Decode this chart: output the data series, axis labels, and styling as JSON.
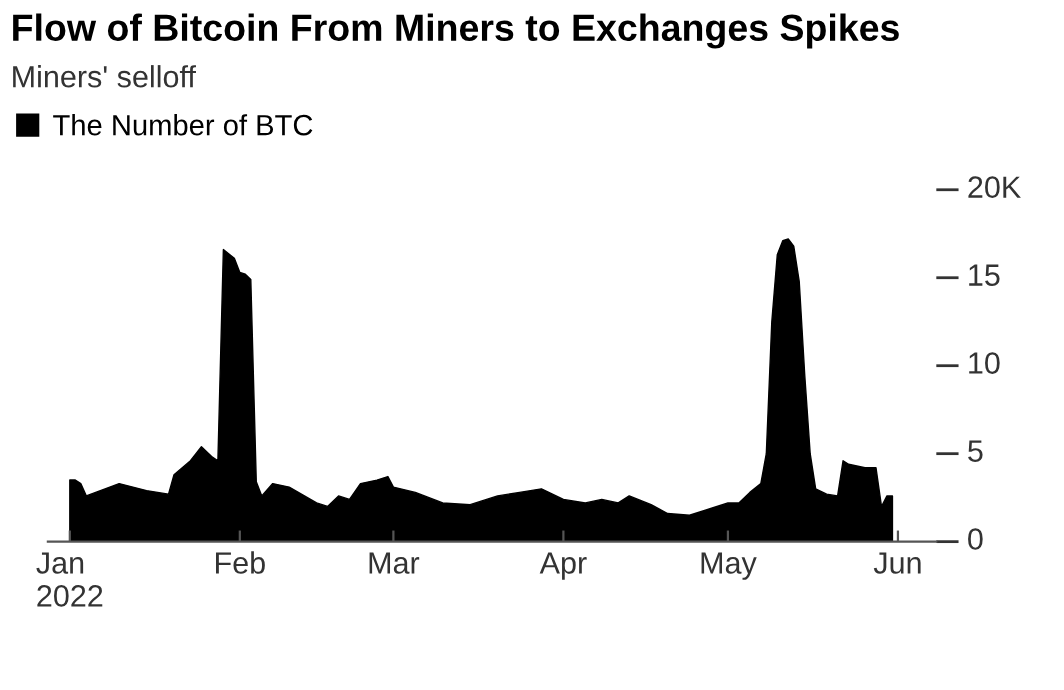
{
  "chart_data": {
    "type": "area",
    "title": "Flow of Bitcoin From Miners to Exchanges Spikes",
    "subtitle": "Miners' selloff",
    "x": [
      "2022-01-01",
      "2022-01-02",
      "2022-01-03",
      "2022-01-04",
      "2022-01-10",
      "2022-01-15",
      "2022-01-19",
      "2022-01-20",
      "2022-01-23",
      "2022-01-25",
      "2022-01-27",
      "2022-01-28",
      "2022-01-29",
      "2022-01-31",
      "2022-02-01",
      "2022-02-02",
      "2022-02-03",
      "2022-02-04",
      "2022-02-05",
      "2022-02-07",
      "2022-02-10",
      "2022-02-15",
      "2022-02-17",
      "2022-02-19",
      "2022-02-21",
      "2022-02-23",
      "2022-02-26",
      "2022-02-28",
      "2022-03-01",
      "2022-03-05",
      "2022-03-10",
      "2022-03-15",
      "2022-03-20",
      "2022-03-24",
      "2022-03-28",
      "2022-04-01",
      "2022-04-05",
      "2022-04-08",
      "2022-04-11",
      "2022-04-13",
      "2022-04-17",
      "2022-04-20",
      "2022-04-24",
      "2022-04-28",
      "2022-05-01",
      "2022-05-03",
      "2022-05-05",
      "2022-05-07",
      "2022-05-08",
      "2022-05-09",
      "2022-05-10",
      "2022-05-11",
      "2022-05-12",
      "2022-05-13",
      "2022-05-14",
      "2022-05-15",
      "2022-05-16",
      "2022-05-17",
      "2022-05-19",
      "2022-05-21",
      "2022-05-22",
      "2022-05-23",
      "2022-05-26",
      "2022-05-28",
      "2022-05-29",
      "2022-05-30",
      "2022-05-31"
    ],
    "series": [
      {
        "name": "The Number of BTC",
        "color": "#000000",
        "values": [
          3.5,
          3.5,
          3.3,
          2.6,
          3.3,
          2.9,
          2.7,
          3.8,
          4.6,
          5.4,
          4.8,
          4.6,
          16.6,
          16.1,
          15.3,
          15.2,
          14.9,
          3.4,
          2.6,
          3.3,
          3.1,
          2.2,
          2.0,
          2.6,
          2.4,
          3.3,
          3.5,
          3.7,
          3.1,
          2.8,
          2.2,
          2.1,
          2.6,
          2.8,
          3.0,
          2.4,
          2.2,
          2.4,
          2.2,
          2.6,
          2.1,
          1.6,
          1.5,
          1.9,
          2.2,
          2.2,
          2.8,
          3.3,
          5.0,
          12.5,
          16.3,
          17.1,
          17.2,
          16.8,
          14.8,
          9.5,
          5.0,
          3.0,
          2.7,
          2.6,
          4.6,
          4.4,
          4.2,
          4.2,
          2.0,
          2.6,
          2.6
        ]
      }
    ],
    "xlim": [
      "2021-12-28",
      "2022-06-08"
    ],
    "xticks": [
      {
        "value": "2022-01-01",
        "label": "Jan\n2022"
      },
      {
        "value": "2022-02-01",
        "label": "Feb"
      },
      {
        "value": "2022-03-01",
        "label": "Mar"
      },
      {
        "value": "2022-04-01",
        "label": "Apr"
      },
      {
        "value": "2022-05-01",
        "label": "May"
      },
      {
        "value": "2022-06-01",
        "label": "Jun"
      }
    ],
    "ylim": [
      0,
      20
    ],
    "yticks": [
      0,
      5,
      10,
      15,
      {
        "value": 20,
        "label": "20K"
      }
    ],
    "legend": "top left",
    "grid": false
  }
}
